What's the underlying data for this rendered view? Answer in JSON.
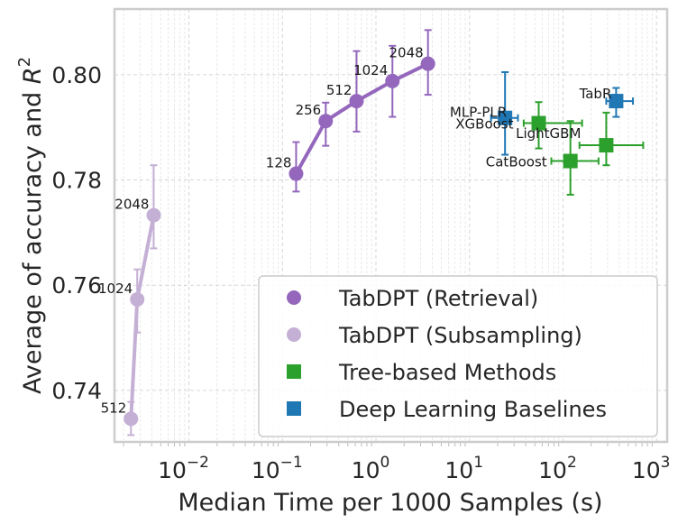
{
  "chart_data": {
    "type": "scatter",
    "title": "",
    "xlabel": "Median Time per 1000 Samples (s)",
    "ylabel_text": "Average of accuracy and ",
    "ylabel_var": "R",
    "ylabel_sup": "2",
    "xscale": "log",
    "xlim": [
      0.0016,
      1300
    ],
    "ylim": [
      0.7302,
      0.8125
    ],
    "x_ticks": [
      {
        "value": 0.01,
        "base": "10",
        "exp": "−2"
      },
      {
        "value": 0.1,
        "base": "10",
        "exp": "−1"
      },
      {
        "value": 1,
        "base": "10",
        "exp": "0"
      },
      {
        "value": 10,
        "base": "10",
        "exp": "1"
      },
      {
        "value": 100,
        "base": "10",
        "exp": "2"
      },
      {
        "value": 1000,
        "base": "10",
        "exp": "3"
      }
    ],
    "y_ticks": [
      {
        "value": 0.74,
        "label": "0.74"
      },
      {
        "value": 0.76,
        "label": "0.76"
      },
      {
        "value": 0.78,
        "label": "0.78"
      },
      {
        "value": 0.8,
        "label": "0.80"
      }
    ],
    "grid": true,
    "legend_position": "lower-right",
    "series": [
      {
        "name": "TabDPT (Retrieval)",
        "color": "#9467bd",
        "marker": "circle",
        "connected": true,
        "points": [
          {
            "label": "128",
            "x": 0.14,
            "y": 0.7812,
            "ylo": 0.7778,
            "yhi": 0.7872
          },
          {
            "label": "256",
            "x": 0.29,
            "y": 0.7912,
            "ylo": 0.7865,
            "yhi": 0.7947
          },
          {
            "label": "512",
            "x": 0.62,
            "y": 0.795,
            "ylo": 0.7892,
            "yhi": 0.8045
          },
          {
            "label": "1024",
            "x": 1.5,
            "y": 0.7988,
            "ylo": 0.792,
            "yhi": 0.8055
          },
          {
            "label": "2048",
            "x": 3.6,
            "y": 0.8021,
            "ylo": 0.7962,
            "yhi": 0.8085
          }
        ]
      },
      {
        "name": "TabDPT (Subsampling)",
        "color": "#c5b0d5",
        "marker": "circle",
        "connected": true,
        "points": [
          {
            "label": "512",
            "x": 0.0024,
            "y": 0.7346,
            "ylo": 0.7315,
            "yhi": 0.7378
          },
          {
            "label": "1024",
            "x": 0.0028,
            "y": 0.7573,
            "ylo": 0.751,
            "yhi": 0.763
          },
          {
            "label": "2048",
            "x": 0.0042,
            "y": 0.7733,
            "ylo": 0.767,
            "yhi": 0.7828
          }
        ]
      },
      {
        "name": "Tree-based Methods",
        "color": "#2ca02c",
        "marker": "square",
        "connected": false,
        "points": [
          {
            "label": "XGBoost",
            "x": 55,
            "y": 0.7908,
            "ylo": 0.786,
            "yhi": 0.7948,
            "xlo": 38,
            "xhi": 160
          },
          {
            "label": "CatBoost",
            "x": 120,
            "y": 0.7836,
            "ylo": 0.7772,
            "yhi": 0.7912,
            "xlo": 75,
            "xhi": 240
          },
          {
            "label": "LightGBM",
            "x": 290,
            "y": 0.7866,
            "ylo": 0.7828,
            "yhi": 0.7928,
            "xlo": 150,
            "xhi": 720
          }
        ]
      },
      {
        "name": "Deep Learning Baselines",
        "color": "#1f77b4",
        "marker": "square",
        "connected": false,
        "points": [
          {
            "label": "MLP-PLR",
            "x": 24,
            "y": 0.7918,
            "ylo": 0.7848,
            "yhi": 0.8005,
            "xlo": 17,
            "xhi": 33
          },
          {
            "label": "TabR",
            "x": 370,
            "y": 0.795,
            "ylo": 0.792,
            "yhi": 0.7975,
            "xlo": 290,
            "xhi": 560
          }
        ]
      }
    ]
  }
}
